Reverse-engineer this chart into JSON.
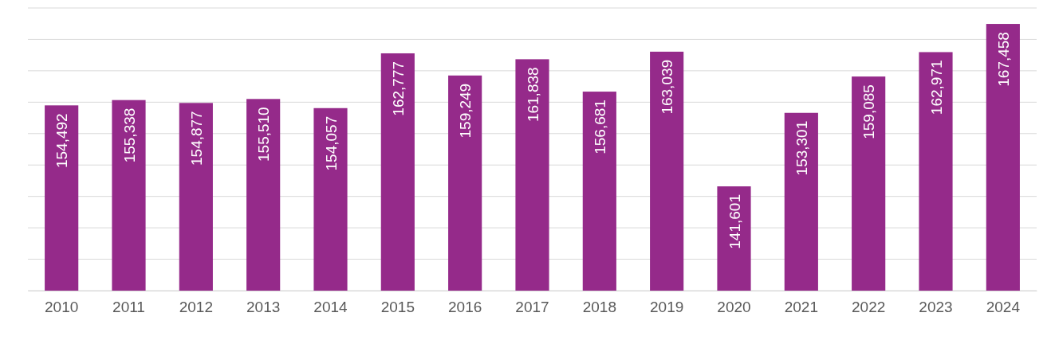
{
  "chart_data": {
    "type": "bar",
    "categories": [
      "2010",
      "2011",
      "2012",
      "2013",
      "2014",
      "2015",
      "2016",
      "2017",
      "2018",
      "2019",
      "2020",
      "2021",
      "2022",
      "2023",
      "2024"
    ],
    "values": [
      154492,
      155338,
      154877,
      155510,
      154057,
      162777,
      159249,
      161838,
      156681,
      163039,
      141601,
      153301,
      159085,
      162971,
      167458
    ],
    "value_labels": [
      "154,492",
      "155,338",
      "154,877",
      "155,510",
      "154,057",
      "162,777",
      "159,249",
      "161,838",
      "156,681",
      "163,039",
      "141,601",
      "153,301",
      "159,085",
      "162,971",
      "167,458"
    ],
    "color": "#952a8a",
    "ylim": [
      125000,
      170000
    ],
    "yticks": [
      {
        "value": 125000,
        "label": null
      },
      {
        "value": 130000,
        "label": null
      },
      {
        "value": 135000,
        "label": null
      },
      {
        "value": 140000,
        "label": null
      },
      {
        "value": 145000,
        "label": null
      },
      {
        "value": 150000,
        "label": null
      },
      {
        "value": 155000,
        "label": null
      },
      {
        "value": 160000,
        "label": null
      },
      {
        "value": 165000,
        "label": null
      },
      {
        "value": 170000,
        "label": null
      }
    ],
    "grid": "y",
    "tick_labels": "x"
  }
}
